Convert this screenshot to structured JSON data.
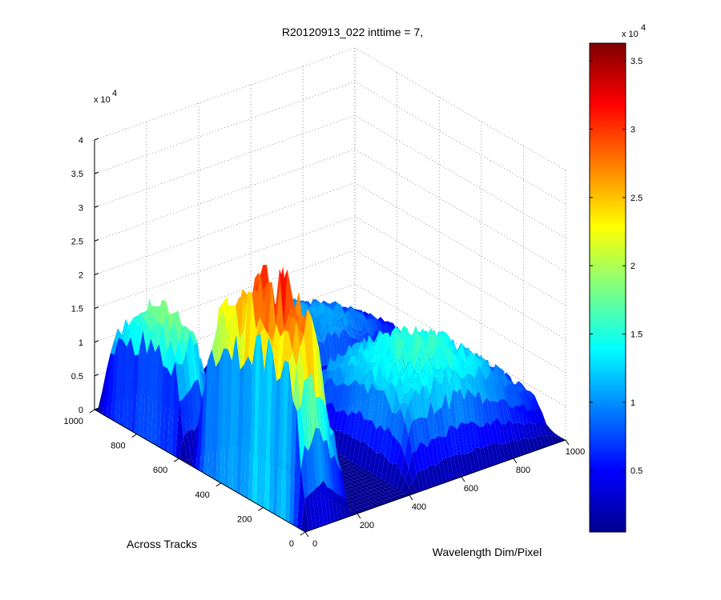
{
  "chart_data": {
    "type": "surface",
    "title": "R20120913_022 inttime = 7,",
    "xlabel": "Wavelength Dim/Pixel",
    "ylabel": "Across Tracks",
    "zlabel": "",
    "x_ticks": [
      "0",
      "200",
      "400",
      "600",
      "800",
      "1000"
    ],
    "y_ticks": [
      "0",
      "200",
      "400",
      "600",
      "800",
      "1000"
    ],
    "z_ticks": [
      "0",
      "0.5",
      "1",
      "1.5",
      "2",
      "2.5",
      "3",
      "3.5",
      "4"
    ],
    "z_exponent": "x 10",
    "z_exponent_power": "4",
    "xlim": [
      0,
      1000
    ],
    "ylim": [
      0,
      1000
    ],
    "zlim": [
      0,
      40000
    ],
    "grid": true,
    "colormap": "jet",
    "colorbar": {
      "ticks": [
        "0.5",
        "1",
        "1.5",
        "2",
        "2.5",
        "3",
        "3.5"
      ],
      "clim": [
        500,
        36300
      ],
      "exponent": "x 10",
      "exponent_power": "4"
    },
    "features": [
      {
        "x_range": [
          0,
          180
        ],
        "y_range": [
          580,
          1000
        ],
        "peak": 20500
      },
      {
        "x_range": [
          0,
          190
        ],
        "y_range": [
          0,
          560
        ],
        "peak": 35500
      },
      {
        "x_range": [
          380,
          1000
        ],
        "y_range": [
          580,
          1000
        ],
        "peak": 12000
      },
      {
        "x_range": [
          400,
          1000
        ],
        "y_range": [
          0,
          560
        ],
        "peak": 17500
      }
    ]
  }
}
